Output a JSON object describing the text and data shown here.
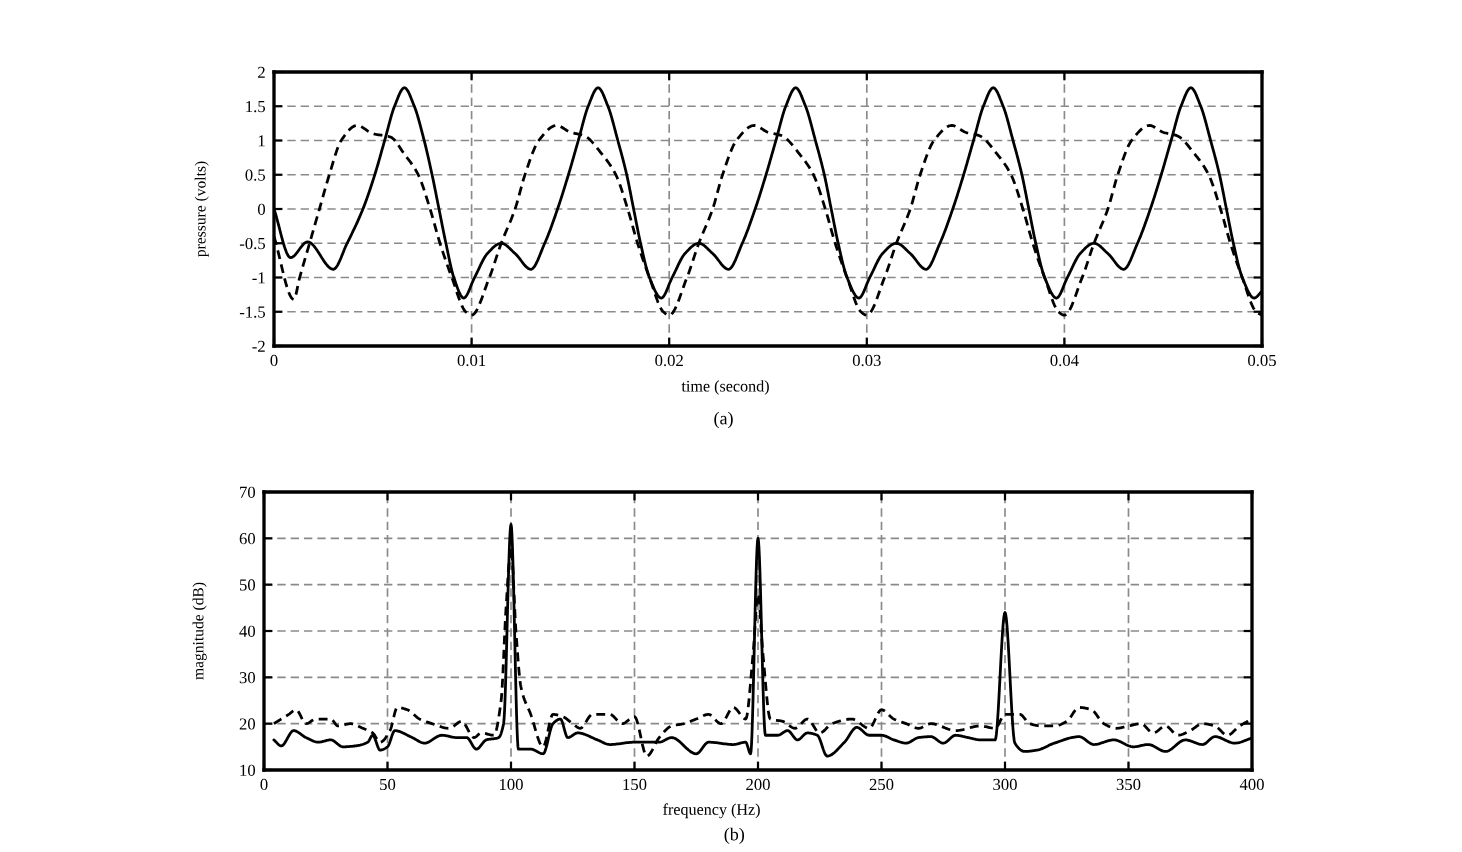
{
  "chart_data": [
    {
      "type": "line",
      "xlabel": "time (second)",
      "ylabel": "pressure (volts)",
      "annotations": [
        "(a)"
      ],
      "grid": true,
      "xlim": [
        0,
        0.05
      ],
      "xticks": [
        0,
        0.01,
        0.02,
        0.03,
        0.04,
        0.05
      ],
      "ylim": [
        -2,
        2
      ],
      "yticks": [
        -2,
        -1.5,
        -1,
        -0.5,
        0,
        0.5,
        1,
        1.5,
        2
      ],
      "series": [
        {
          "color": "#000000",
          "line_style": "solid",
          "x": [
            0,
            0.00084,
            0.0017,
            0.003,
            0.0037,
            0.0045,
            0.0051,
            0.0056,
            0.0061,
            0.0066,
            0.0071,
            0.0076,
            0.008,
            0.00835,
            0.0087,
            0.0091,
            0.0096,
            0.01015,
            0.0108,
            0.0115,
            0.0122,
            0.013,
            0.0137,
            0.01435,
            0.0149,
            0.0154,
            0.0159,
            0.0164,
            0.0169,
            0.0174,
            0.01785,
            0.0182,
            0.01855,
            0.019,
            0.0196,
            0.02015,
            0.0208,
            0.0215,
            0.0222,
            0.023,
            0.0237,
            0.02435,
            0.0249,
            0.0254,
            0.0259,
            0.0264,
            0.0269,
            0.0274,
            0.02785,
            0.0282,
            0.02855,
            0.029,
            0.0296,
            0.03015,
            0.0308,
            0.0315,
            0.0322,
            0.033,
            0.0337,
            0.03435,
            0.0349,
            0.0354,
            0.0359,
            0.0364,
            0.0369,
            0.0374,
            0.03785,
            0.0382,
            0.03855,
            0.039,
            0.0396,
            0.04015,
            0.0408,
            0.0415,
            0.0422,
            0.043,
            0.0437,
            0.04435,
            0.0449,
            0.0454,
            0.0459,
            0.0464,
            0.0469,
            0.0474,
            0.04785,
            0.0482,
            0.04855,
            0.049,
            0.0496,
            0.05
          ],
          "values": [
            0,
            -0.71,
            -0.48,
            -0.88,
            -0.5,
            0,
            0.5,
            1,
            1.5,
            1.77,
            1.5,
            1,
            0.5,
            0,
            -0.5,
            -1,
            -1.3,
            -1,
            -0.65,
            -0.5,
            -0.65,
            -0.88,
            -0.5,
            0,
            0.5,
            1,
            1.5,
            1.77,
            1.5,
            1,
            0.5,
            0,
            -0.5,
            -1,
            -1.3,
            -1,
            -0.65,
            -0.5,
            -0.65,
            -0.88,
            -0.5,
            0,
            0.5,
            1,
            1.5,
            1.77,
            1.5,
            1,
            0.5,
            0,
            -0.5,
            -1,
            -1.3,
            -1,
            -0.65,
            -0.5,
            -0.65,
            -0.88,
            -0.5,
            0,
            0.5,
            1,
            1.5,
            1.77,
            1.5,
            1,
            0.5,
            0,
            -0.5,
            -1,
            -1.3,
            -1,
            -0.65,
            -0.5,
            -0.65,
            -0.88,
            -0.5,
            0,
            0.5,
            1,
            1.5,
            1.77,
            1.5,
            1,
            0.5,
            0,
            -0.5,
            -1,
            -1.3,
            -1.2
          ]
        },
        {
          "color": "#000000",
          "line_style": "dashed",
          "x": [
            0,
            0.001,
            0.0013,
            0.0018,
            0.0023,
            0.0028,
            0.0034,
            0.0042,
            0.005,
            0.0059,
            0.0066,
            0.0073,
            0.0079,
            0.0084,
            0.009,
            0.0097,
            0.01,
            0.0109,
            0.0115,
            0.0122,
            0.0127,
            0.0134,
            0.0143,
            0.015,
            0.0157,
            0.0166,
            0.0173,
            0.0179,
            0.0184,
            0.019,
            0.0197,
            0.02,
            0.0209,
            0.0215,
            0.0222,
            0.0227,
            0.0234,
            0.0243,
            0.025,
            0.0257,
            0.0266,
            0.0273,
            0.0279,
            0.0284,
            0.029,
            0.0297,
            0.03,
            0.0309,
            0.0315,
            0.0322,
            0.0327,
            0.0334,
            0.0343,
            0.035,
            0.0357,
            0.0366,
            0.0373,
            0.0379,
            0.0384,
            0.039,
            0.0397,
            0.04,
            0.0409,
            0.0415,
            0.0422,
            0.0427,
            0.0434,
            0.0443,
            0.045,
            0.0457,
            0.0466,
            0.0473,
            0.0479,
            0.0484,
            0.049,
            0.0497,
            0.05
          ],
          "values": [
            -0.4,
            -1.32,
            -1,
            -0.5,
            0,
            0.5,
            1,
            1.22,
            1.1,
            1.05,
            0.8,
            0.5,
            0,
            -0.5,
            -1,
            -1.5,
            -1.55,
            -1,
            -0.5,
            0,
            0.5,
            1,
            1.22,
            1.12,
            1.07,
            0.8,
            0.5,
            0,
            -0.5,
            -1,
            -1.5,
            -1.55,
            -1,
            -0.5,
            0,
            0.5,
            1,
            1.22,
            1.12,
            1.07,
            0.8,
            0.5,
            0,
            -0.5,
            -1,
            -1.5,
            -1.55,
            -1,
            -0.5,
            0,
            0.5,
            1,
            1.22,
            1.12,
            1.07,
            0.8,
            0.5,
            0,
            -0.5,
            -1,
            -1.5,
            -1.55,
            -1,
            -0.5,
            0,
            0.5,
            1,
            1.22,
            1.12,
            1.07,
            0.8,
            0.5,
            0,
            -0.5,
            -1,
            -1.5,
            -1.55
          ]
        }
      ]
    },
    {
      "type": "line",
      "xlabel": "frequency (Hz)",
      "ylabel": "magnitude (dB)",
      "annotations": [
        "(b)"
      ],
      "grid": true,
      "xlim": [
        0,
        400
      ],
      "xticks": [
        0,
        50,
        100,
        150,
        200,
        250,
        300,
        350,
        400
      ],
      "ylim": [
        10,
        70
      ],
      "yticks": [
        10,
        20,
        30,
        40,
        50,
        60,
        70
      ],
      "series": [
        {
          "color": "#000000",
          "line_style": "solid",
          "x": [
            4,
            7,
            12,
            17,
            22,
            27,
            32,
            37,
            42,
            44,
            47,
            50,
            53,
            60,
            65,
            72,
            78,
            82,
            86,
            90,
            95,
            97,
            100,
            103,
            108,
            113,
            117,
            120,
            123,
            127,
            135,
            140,
            150,
            160,
            165,
            175,
            180,
            190,
            195,
            197,
            200,
            203,
            208,
            212,
            216,
            220,
            224,
            228,
            235,
            240,
            245,
            250,
            255,
            260,
            265,
            270,
            275,
            280,
            285,
            290,
            296,
            300,
            304,
            308,
            313,
            320,
            330,
            336,
            344,
            352,
            358,
            365,
            373,
            380,
            385,
            393,
            400
          ],
          "values": [
            16.5,
            15.2,
            18.5,
            17,
            16,
            16.5,
            15,
            15.2,
            16,
            17.5,
            14.3,
            15,
            18.5,
            17,
            15.8,
            17.5,
            17,
            17,
            14.5,
            16.5,
            17,
            20,
            63,
            14.5,
            14.5,
            13.5,
            20,
            21,
            17,
            18,
            16.5,
            15.5,
            16,
            16,
            17,
            13.5,
            16,
            15.5,
            16,
            13.5,
            60,
            17.5,
            17.5,
            18.5,
            16.5,
            18,
            17.5,
            13,
            16,
            19.2,
            17.5,
            17.5,
            16.5,
            15.8,
            17,
            17.2,
            15.8,
            17.5,
            17,
            16.5,
            16.5,
            44,
            15.8,
            14,
            14.3,
            15.8,
            17.2,
            15.5,
            16.5,
            15,
            15.5,
            14,
            16.5,
            15.5,
            17.2,
            15.8,
            16.9
          ]
        },
        {
          "color": "#000000",
          "line_style": "dashed",
          "x": [
            4,
            10,
            13,
            17,
            21,
            27,
            30,
            35,
            40,
            44,
            47,
            51,
            54,
            58,
            63,
            68,
            75,
            80,
            85,
            88,
            93,
            96,
            98,
            100,
            102,
            104,
            108,
            113,
            117,
            121,
            125,
            128,
            133,
            140,
            145,
            150,
            155,
            160,
            165,
            170,
            175,
            180,
            185,
            190,
            195,
            198,
            200,
            202,
            205,
            210,
            215,
            220,
            225,
            230,
            238,
            245,
            250,
            255,
            260,
            265,
            270,
            280,
            290,
            296,
            300,
            303,
            306,
            310,
            315,
            320,
            325,
            330,
            335,
            340,
            345,
            350,
            355,
            360,
            365,
            370,
            375,
            380,
            385,
            390,
            395,
            400
          ],
          "values": [
            20,
            22,
            23,
            20,
            21,
            21,
            19.5,
            20,
            19,
            18,
            16,
            18.5,
            23.5,
            23,
            21,
            20,
            19,
            20.5,
            17,
            18,
            17.5,
            25,
            45,
            58,
            40,
            28,
            22,
            15,
            22,
            21.5,
            20,
            19,
            22,
            22,
            20,
            21.5,
            13,
            17,
            19.5,
            20,
            21,
            22,
            20,
            23.5,
            21,
            35,
            48,
            35,
            21,
            20.5,
            19,
            21,
            18,
            20,
            21,
            19,
            23,
            21,
            20,
            19,
            20,
            18.5,
            19.5,
            19,
            22,
            22,
            22,
            20,
            19.5,
            19.5,
            20.5,
            23.5,
            23,
            20,
            19,
            19.5,
            20,
            18,
            19.5,
            17.5,
            18.5,
            20,
            19.5,
            17.5,
            19.5,
            21
          ]
        }
      ]
    }
  ]
}
